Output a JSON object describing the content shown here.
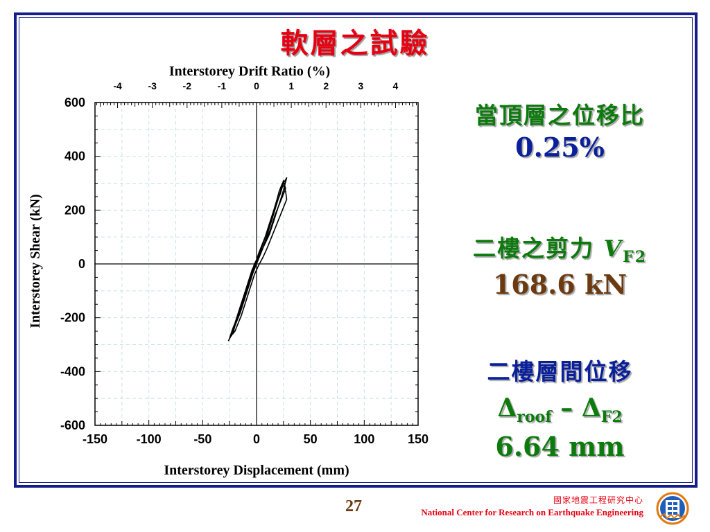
{
  "slide": {
    "title": "軟層之試驗",
    "right_panel": {
      "line1": "當頂層之位移比",
      "line2": "0.25%",
      "line3_text": "二樓之剪力",
      "line3_var": "V",
      "line3_sub": "F2",
      "line4": "168.6 kN",
      "line5": "二樓層間位移",
      "line6_delta1": "Δ",
      "line6_sub1": "roof",
      "line6_minus": " – ",
      "line6_delta2": "Δ",
      "line6_sub2": "F2",
      "line7": "6.64 mm"
    },
    "page_number": "27",
    "org_cn": "國家地震工程研究中心",
    "org_en": "National Center for Research on Earthquake Engineering",
    "colors": {
      "frame": "#141e8a",
      "title": "#e60012",
      "green": "#0c7a0c",
      "brown": "#6b3a10",
      "blue": "#0a1f9a"
    }
  },
  "chart_data": {
    "type": "line",
    "title": "",
    "xlabel": "Interstorey Displacement (mm)",
    "ylabel": "Interstorey Shear (kN)",
    "x2label": "Interstorey Drift Ratio (%)",
    "xlim": [
      -150,
      150
    ],
    "ylim": [
      -600,
      600
    ],
    "x2lim": [
      -4.65,
      4.65
    ],
    "xticks": [
      "-150",
      "-100",
      "-50",
      "0",
      "50",
      "100",
      "150"
    ],
    "yticks": [
      "600",
      "400",
      "200",
      "0",
      "-200",
      "-400",
      "-600"
    ],
    "x2ticks": [
      "-4",
      "-3",
      "-2",
      "-1",
      "0",
      "1",
      "2",
      "3",
      "4"
    ],
    "grid": true,
    "series": [
      {
        "x": [
          0,
          6,
          12,
          16,
          20,
          24,
          26,
          28,
          25,
          22,
          18,
          14,
          10,
          6,
          2,
          -2,
          -6,
          -10,
          -14,
          -18,
          -21,
          -24,
          -26,
          -23,
          -20,
          -16,
          -12,
          -8,
          -4,
          0,
          4,
          8,
          12,
          16,
          19,
          21,
          24,
          27,
          28,
          26,
          22,
          18,
          14,
          10,
          6,
          2,
          -2,
          -6,
          -10,
          -14,
          -17,
          -20,
          -22,
          -20,
          -17,
          -14,
          -10,
          -6,
          -2,
          2,
          6,
          10,
          14,
          17,
          20,
          23,
          25,
          27,
          24,
          21,
          17,
          13,
          9,
          5,
          1,
          -3,
          -7,
          -11,
          -15,
          -18,
          -21,
          -23,
          -25,
          -22,
          -18,
          -14,
          -10,
          -6,
          -2,
          2
        ],
        "y": [
          20,
          60,
          110,
          160,
          210,
          260,
          290,
          320,
          300,
          260,
          220,
          170,
          120,
          80,
          40,
          -10,
          -60,
          -110,
          -160,
          -210,
          -240,
          -270,
          -285,
          -260,
          -220,
          -170,
          -120,
          -70,
          -20,
          10,
          50,
          100,
          150,
          200,
          240,
          270,
          300,
          270,
          240,
          220,
          180,
          140,
          100,
          60,
          25,
          -5,
          -40,
          -90,
          -140,
          -190,
          -220,
          -250,
          -260,
          -230,
          -190,
          -150,
          -100,
          -60,
          -20,
          20,
          60,
          110,
          160,
          200,
          240,
          280,
          310,
          280,
          250,
          220,
          180,
          130,
          90,
          50,
          10,
          -30,
          -80,
          -130,
          -180,
          -210,
          -240,
          -265,
          -275,
          -240,
          -200,
          -150,
          -100,
          -50,
          0,
          30
        ]
      }
    ]
  }
}
